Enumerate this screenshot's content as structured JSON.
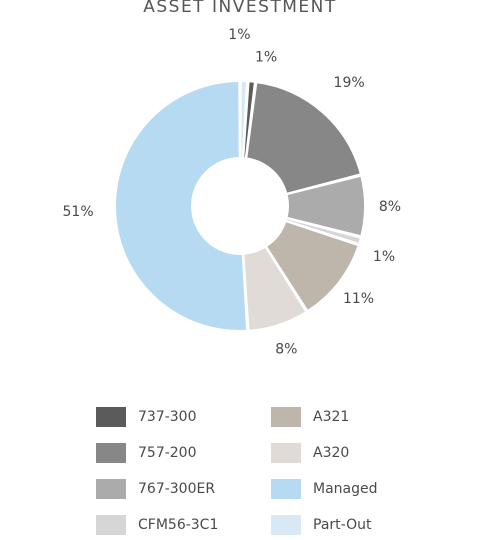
{
  "chart_data": {
    "type": "pie",
    "title": "ASSET INVESTMENT",
    "donut": true,
    "slices": [
      {
        "label": "Part-Out",
        "value": 1,
        "display": "1%",
        "color": "#d8e8f5"
      },
      {
        "label": "737-300",
        "value": 1,
        "display": "1%",
        "color": "#5b5b5b"
      },
      {
        "label": "757-200",
        "value": 19,
        "display": "19%",
        "color": "#878787"
      },
      {
        "label": "767-300ER",
        "value": 8,
        "display": "8%",
        "color": "#ababab"
      },
      {
        "label": "CFM56-3C1",
        "value": 1,
        "display": "1%",
        "color": "#d6d6d6"
      },
      {
        "label": "A321",
        "value": 11,
        "display": "11%",
        "color": "#beb5ab"
      },
      {
        "label": "A320",
        "value": 8,
        "display": "8%",
        "color": "#e0dbd6"
      },
      {
        "label": "Managed",
        "value": 51,
        "display": "51%",
        "color": "#b6daf1"
      }
    ],
    "legend": {
      "placement": "bottom",
      "columns": [
        [
          "737-300",
          "757-200",
          "767-300ER",
          "CFM56-3C1"
        ],
        [
          "A321",
          "A320",
          "Managed",
          "Part-Out"
        ]
      ]
    }
  }
}
